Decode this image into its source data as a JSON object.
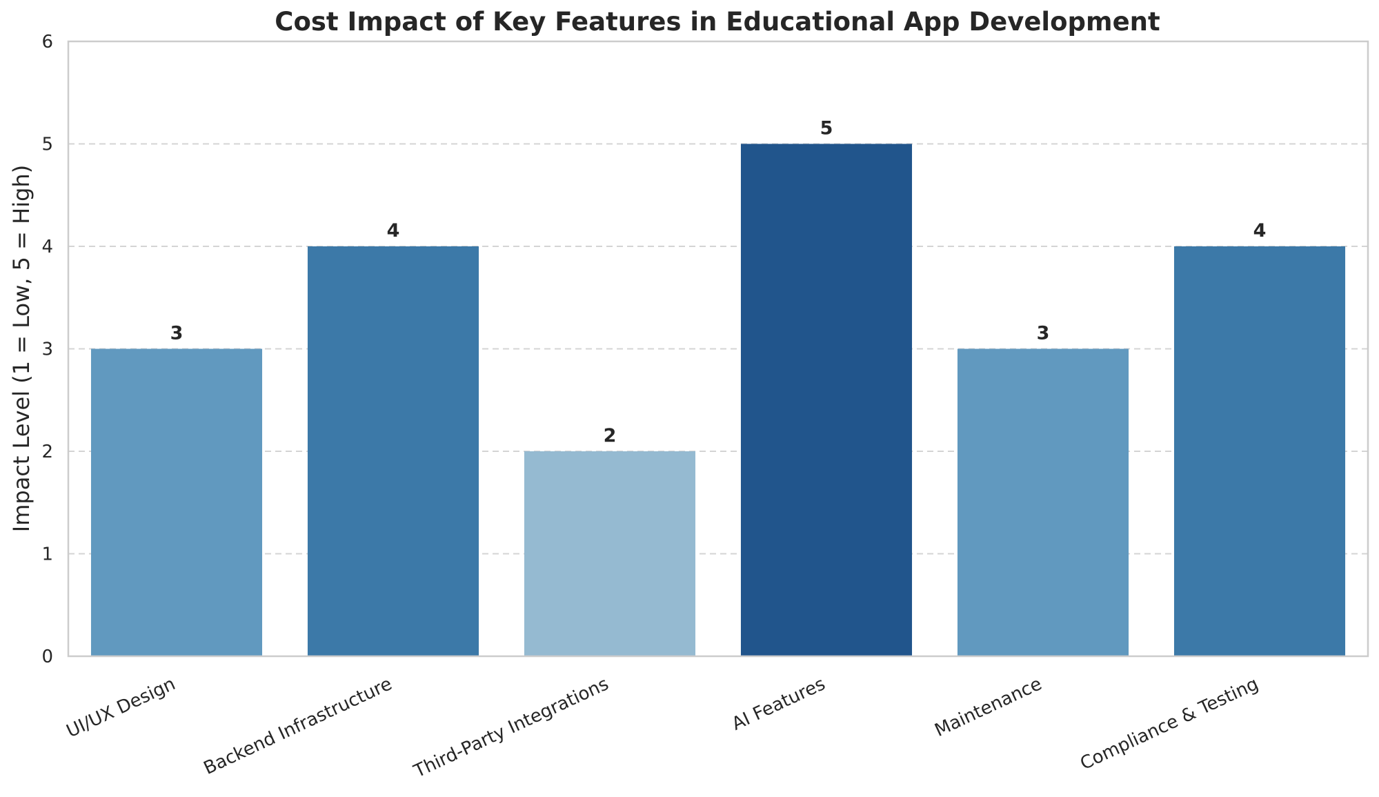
{
  "chart_data": {
    "type": "bar",
    "title": "Cost Impact of Key Features in Educational App Development",
    "xlabel": "",
    "ylabel": "Impact Level (1 = Low, 5 = High)",
    "categories": [
      "UI/UX Design",
      "Backend Infrastructure",
      "Third-Party Integrations",
      "AI Features",
      "Maintenance",
      "Compliance & Testing"
    ],
    "values": [
      3,
      4,
      2,
      5,
      3,
      4
    ],
    "data_labels": [
      "3",
      "4",
      "2",
      "5",
      "3",
      "4"
    ],
    "ylim": [
      0,
      6
    ],
    "yticks": [
      0,
      1,
      2,
      3,
      4,
      5,
      6
    ],
    "ytick_labels": [
      "0",
      "1",
      "2",
      "3",
      "4",
      "5",
      "6"
    ],
    "grid": true,
    "bar_colors": [
      "#6199bf",
      "#3c79a8",
      "#95bad1",
      "#21558c",
      "#6199bf",
      "#3c79a8"
    ]
  }
}
